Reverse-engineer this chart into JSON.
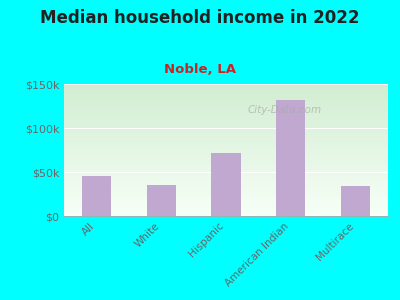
{
  "title": "Median household income in 2022",
  "subtitle": "Noble, LA",
  "categories": [
    "All",
    "White",
    "Hispanic",
    "American Indian",
    "Multirace"
  ],
  "values": [
    46000,
    35000,
    72000,
    132000,
    34000
  ],
  "bar_color": "#c0a8d0",
  "title_fontsize": 12,
  "subtitle_fontsize": 9.5,
  "subtitle_color": "#cc2222",
  "title_color": "#222222",
  "background_outer": "#00ffff",
  "plot_bg_top": "#d8efd8",
  "plot_bg_bottom": "#f8fff8",
  "ylim": [
    0,
    150000
  ],
  "yticks": [
    0,
    50000,
    100000,
    150000
  ],
  "ytick_labels": [
    "$0",
    "$50k",
    "$100k",
    "$150k"
  ],
  "watermark": "City-Data.com",
  "grid_color": "#ccddcc",
  "tick_color": "#666666"
}
